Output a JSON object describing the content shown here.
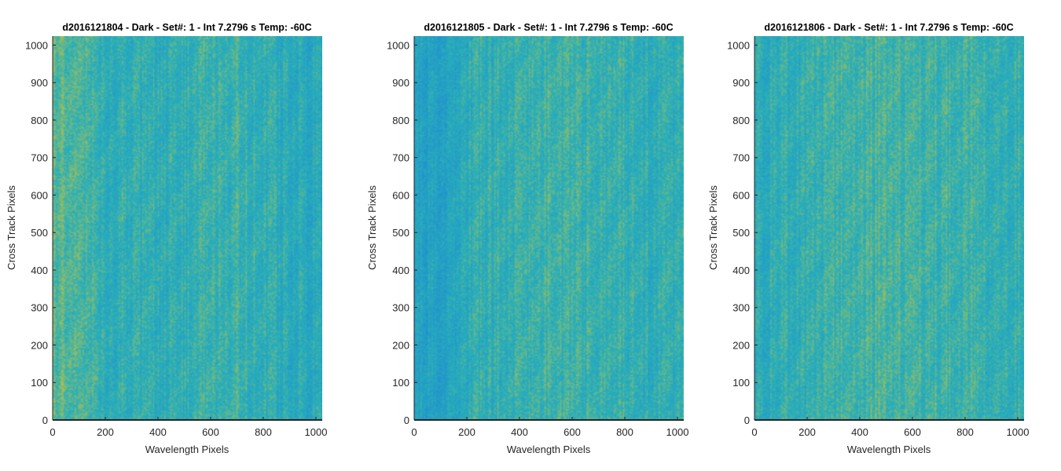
{
  "figure": {
    "colors": {
      "axis": "#262626",
      "low": "#1f8fd0",
      "mid": "#2ab0b8",
      "high": "#c8c23c"
    }
  },
  "chart_data": [
    {
      "type": "heatmap",
      "title": "d2016121804 - Dark - Set#: 1 - Int 7.2796 s Temp: -60C",
      "xlabel": "Wavelength Pixels",
      "ylabel": "Cross Track Pixels",
      "xlim": [
        0,
        1024
      ],
      "ylim": [
        0,
        1024
      ],
      "xticks": [
        0,
        200,
        400,
        600,
        800,
        1000
      ],
      "yticks": [
        0,
        100,
        200,
        300,
        400,
        500,
        600,
        700,
        800,
        900,
        1000
      ],
      "column_profile": {
        "x": [
          0,
          50,
          100,
          150,
          200,
          300,
          400,
          500,
          600,
          700,
          800,
          900,
          1024
        ],
        "value": [
          0.62,
          0.66,
          0.64,
          0.58,
          0.5,
          0.47,
          0.44,
          0.47,
          0.52,
          0.55,
          0.48,
          0.43,
          0.4
        ]
      },
      "grid": false,
      "colormap": "parula"
    },
    {
      "type": "heatmap",
      "title": "d2016121805 - Dark - Set#: 1 - Int 7.2796 s Temp: -60C",
      "xlabel": "Wavelength Pixels",
      "ylabel": "Cross Track Pixels",
      "xlim": [
        0,
        1024
      ],
      "ylim": [
        0,
        1024
      ],
      "xticks": [
        0,
        200,
        400,
        600,
        800,
        1000
      ],
      "yticks": [
        0,
        100,
        200,
        300,
        400,
        500,
        600,
        700,
        800,
        900,
        1000
      ],
      "column_profile": {
        "x": [
          0,
          50,
          100,
          150,
          200,
          300,
          400,
          500,
          600,
          700,
          800,
          900,
          1024
        ],
        "value": [
          0.3,
          0.28,
          0.3,
          0.36,
          0.45,
          0.5,
          0.52,
          0.55,
          0.52,
          0.54,
          0.5,
          0.46,
          0.48
        ]
      },
      "grid": false,
      "colormap": "parula"
    },
    {
      "type": "heatmap",
      "title": "d2016121806 - Dark - Set#: 1 - Int 7.2796 s Temp: -60C",
      "xlabel": "Wavelength Pixels",
      "ylabel": "Cross Track Pixels",
      "xlim": [
        0,
        1024
      ],
      "ylim": [
        0,
        1024
      ],
      "xticks": [
        0,
        200,
        400,
        600,
        800,
        1000
      ],
      "yticks": [
        0,
        100,
        200,
        300,
        400,
        500,
        600,
        700,
        800,
        900,
        1000
      ],
      "column_profile": {
        "x": [
          0,
          50,
          100,
          150,
          200,
          300,
          400,
          500,
          600,
          700,
          800,
          900,
          1024
        ],
        "value": [
          0.44,
          0.46,
          0.47,
          0.48,
          0.49,
          0.52,
          0.56,
          0.6,
          0.57,
          0.55,
          0.57,
          0.52,
          0.48
        ]
      },
      "grid": false,
      "colormap": "parula"
    }
  ]
}
